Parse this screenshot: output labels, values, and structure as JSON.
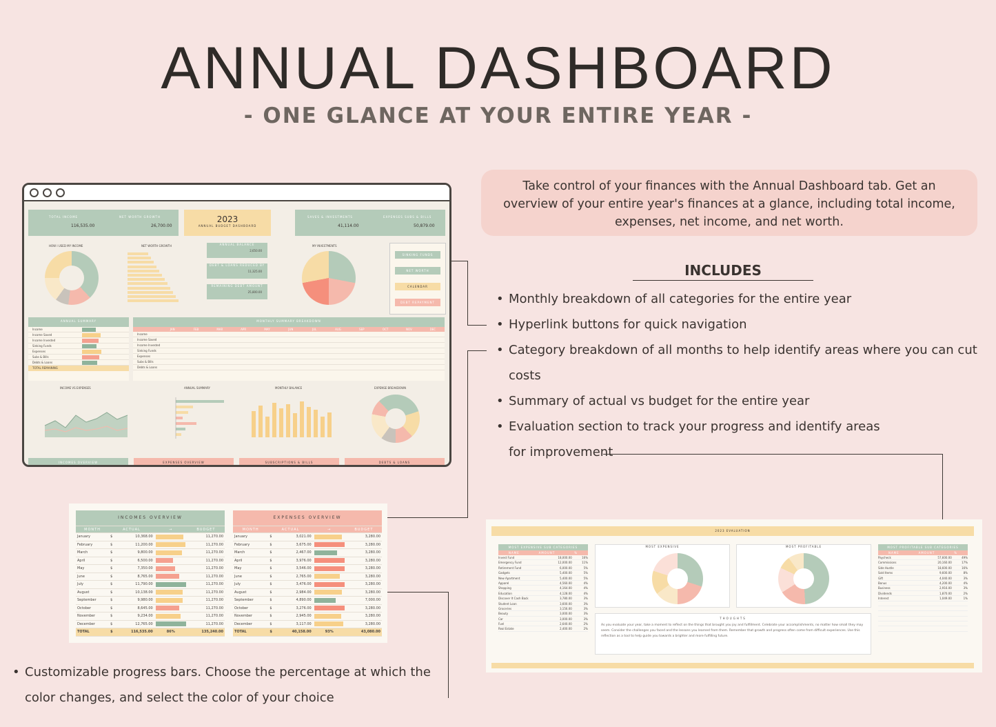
{
  "header": {
    "title": "ANNUAL DASHBOARD",
    "subtitle": "- ONE GLANCE AT YOUR ENTIRE YEAR -"
  },
  "description": "Take control of your finances with the Annual Dashboard tab. Get an overview of your entire year's finances at a glance, including total income, expenses, net income, and net worth.",
  "includes": {
    "title": "INCLUDES",
    "items": [
      "Monthly breakdown of all categories for the entire year",
      "Hyperlink buttons for quick navigation",
      "Category breakdown of all months to help identify areas where you can cut costs",
      "Summary of actual vs budget for the entire year",
      "Evaluation section to track your progress and identify areas for improvement"
    ]
  },
  "progress_note": "Customizable progress bars. Choose the percentage at which the color changes, and select the color of your choice",
  "colors": {
    "background": "#f7e4e2",
    "green": "#b4cbb9",
    "yellow": "#f7dca6",
    "pink": "#f5b9ac"
  },
  "dashboard": {
    "kpis": {
      "total_income_label": "TOTAL INCOME",
      "total_income": "116,535.00",
      "net_worth_label": "NET WORTH GROWTH",
      "net_worth": "26,700.00",
      "year": "2023",
      "year_sub": "ANNUAL BUDGET DASHBOARD",
      "savings_label": "SAVES & INVESTMENTS",
      "savings": "41,114.00",
      "expenses_label": "EXPENSES SUBS & BILLS",
      "expenses": "50,879.00"
    },
    "mini": {
      "annual_balance_label": "ANNUAL BALANCE",
      "annual_balance": "2,650.00",
      "debt_reduced_label": "DEBT & LOANS REDUCED BY",
      "debt_reduced": "11,325.00",
      "remaining_debt_label": "REMAINING DEBT AMOUNT",
      "remaining_debt": "25,800.00",
      "currency": "$"
    },
    "chart_titles": {
      "used_income": "HOW I USED MY INCOME",
      "net_worth": "NET WORTH GROWTH",
      "investments": "MY INVESTMENTS",
      "annual_summary": "ANNUAL SUMMARY",
      "monthly_summary": "MONTHLY SUMMARY BREAKDOWN",
      "income_vs_expenses": "INCOME VS EXPENSES",
      "monthly_balance": "MONTHLY BALANCE",
      "expense_breakdown": "EXPENSE BREAKDOWN"
    },
    "buttons": [
      "SINKING FUNDS",
      "NET WORTH",
      "CALENDAR",
      "DEBT REPAYMENT"
    ],
    "tabs": [
      "INCOMES OVERVIEW",
      "EXPENSES OVERVIEW",
      "SUBSCRIPTIONS & BILLS",
      "DEBTS & LOANS"
    ],
    "annual_rows": [
      "Income",
      "Income Saved",
      "Income Invested",
      "Sinking Funds",
      "Expenses",
      "Subs & Bills",
      "Debts & Loans"
    ],
    "remaining": "TOTAL REMAINING",
    "months_short": [
      "JAN",
      "FEB",
      "MAR",
      "APR",
      "MAY",
      "JUN",
      "JUL",
      "AUG",
      "SEP",
      "OCT",
      "NOV",
      "DEC"
    ]
  },
  "incomes_overview": {
    "title": "INCOMES OVERVIEW",
    "columns": [
      "MONTH",
      "ACTUAL",
      "→",
      "BUDGET"
    ],
    "rows": [
      {
        "month": "January",
        "actual": "10,368.00",
        "budget": "11,270.00",
        "pct": 0.92
      },
      {
        "month": "February",
        "actual": "11,200.00",
        "budget": "11,270.00",
        "pct": 0.99
      },
      {
        "month": "March",
        "actual": "9,800.00",
        "budget": "11,270.00",
        "pct": 0.87
      },
      {
        "month": "April",
        "actual": "6,500.00",
        "budget": "11,270.00",
        "pct": 0.58
      },
      {
        "month": "May",
        "actual": "7,350.00",
        "budget": "11,270.00",
        "pct": 0.65
      },
      {
        "month": "June",
        "actual": "8,765.00",
        "budget": "11,270.00",
        "pct": 0.78
      },
      {
        "month": "July",
        "actual": "11,790.00",
        "budget": "11,270.00",
        "pct": 1.0
      },
      {
        "month": "August",
        "actual": "10,138.00",
        "budget": "11,270.00",
        "pct": 0.9
      },
      {
        "month": "September",
        "actual": "9,980.00",
        "budget": "11,270.00",
        "pct": 0.89
      },
      {
        "month": "October",
        "actual": "8,645.00",
        "budget": "11,270.00",
        "pct": 0.77
      },
      {
        "month": "November",
        "actual": "9,234.00",
        "budget": "11,270.00",
        "pct": 0.82
      },
      {
        "month": "December",
        "actual": "12,765.00",
        "budget": "11,270.00",
        "pct": 1.0
      }
    ],
    "total": {
      "label": "TOTAL",
      "actual": "116,535.00",
      "pct": "86%",
      "budget": "135,240.00"
    }
  },
  "expenses_overview": {
    "title": "EXPENSES OVERVIEW",
    "columns": [
      "MONTH",
      "ACTUAL",
      "→",
      "BUDGET"
    ],
    "rows": [
      {
        "month": "January",
        "actual": "3,021.00",
        "budget": "3,280.00",
        "pct": 0.92
      },
      {
        "month": "February",
        "actual": "3,675.00",
        "budget": "3,280.00",
        "pct": 1.0
      },
      {
        "month": "March",
        "actual": "2,467.00",
        "budget": "3,280.00",
        "pct": 0.75
      },
      {
        "month": "April",
        "actual": "3,976.00",
        "budget": "3,280.00",
        "pct": 1.0
      },
      {
        "month": "May",
        "actual": "3,546.00",
        "budget": "3,280.00",
        "pct": 1.0
      },
      {
        "month": "June",
        "actual": "2,765.00",
        "budget": "3,280.00",
        "pct": 0.84
      },
      {
        "month": "July",
        "actual": "3,476.00",
        "budget": "3,280.00",
        "pct": 1.0
      },
      {
        "month": "August",
        "actual": "2,984.00",
        "budget": "3,280.00",
        "pct": 0.91
      },
      {
        "month": "September",
        "actual": "4,890.00",
        "budget": "7,000.00",
        "pct": 0.7
      },
      {
        "month": "October",
        "actual": "3,276.00",
        "budget": "3,280.00",
        "pct": 1.0
      },
      {
        "month": "November",
        "actual": "2,945.00",
        "budget": "3,280.00",
        "pct": 0.9
      },
      {
        "month": "December",
        "actual": "3,117.00",
        "budget": "3,280.00",
        "pct": 0.95
      }
    ],
    "total": {
      "label": "TOTAL",
      "actual": "40,158.00",
      "pct": "93%",
      "budget": "43,080.00"
    }
  },
  "evaluation": {
    "title": "2023 EVALUATION",
    "most_expensive_title": "MOST EXPENSIVE SUB CATEGORIES",
    "most_profitable_title": "MOST PROFITABLE SUB CATEGORIES",
    "columns": [
      "NAME",
      "AMOUNT",
      "%"
    ],
    "expensive": [
      [
        "Invest Fund",
        "18,000.00",
        "16%"
      ],
      [
        "Emergency Fund",
        "12,000.00",
        "11%"
      ],
      [
        "Retirement Fund",
        "6,000.00",
        "5%"
      ],
      [
        "Gadgets",
        "5,400.00",
        "5%"
      ],
      [
        "New Apartment",
        "5,400.00",
        "5%"
      ],
      [
        "Apparel",
        "4,560.00",
        "4%"
      ],
      [
        "Shopping",
        "4,164.00",
        "4%"
      ],
      [
        "Education",
        "4,128.00",
        "4%"
      ],
      [
        "Discover It Cash Back",
        "3,780.00",
        "3%"
      ],
      [
        "Student Loan",
        "3,600.00",
        "3%"
      ],
      [
        "Groceries",
        "3,156.00",
        "3%"
      ],
      [
        "Beauty",
        "3,000.00",
        "3%"
      ],
      [
        "Car",
        "3,000.00",
        "3%"
      ],
      [
        "Fuel",
        "2,640.00",
        "2%"
      ],
      [
        "Real Estate",
        "2,400.00",
        "2%"
      ]
    ],
    "profitable": [
      [
        "Paycheck",
        "57,600.00",
        "49%"
      ],
      [
        "Commissions",
        "20,160.00",
        "17%"
      ],
      [
        "Side Hustle",
        "18,600.00",
        "16%"
      ],
      [
        "Sold Items",
        "9,600.00",
        "8%"
      ],
      [
        "Gift",
        "4,040.00",
        "3%"
      ],
      [
        "Bonus",
        "4,200.00",
        "4%"
      ],
      [
        "Business",
        "2,916.00",
        "3%"
      ],
      [
        "Dividends",
        "1,870.00",
        "2%"
      ],
      [
        "Interest",
        "1,049.00",
        "1%"
      ]
    ],
    "chart_most_expensive": "MOST EXPENSIVE",
    "chart_most_profitable": "MOST PROFITABLE",
    "thoughts_title": "THOUGHTS",
    "thoughts": "As you evaluate your year, take a moment to reflect on the things that brought you joy and fulfillment. Celebrate your accomplishments, no matter how small they may seem. Consider the challenges you faced and the lessons you learned from them. Remember that growth and progress often come from difficult experiences. Use this reflection as a tool to help guide you towards a brighter and more fulfilling future."
  }
}
